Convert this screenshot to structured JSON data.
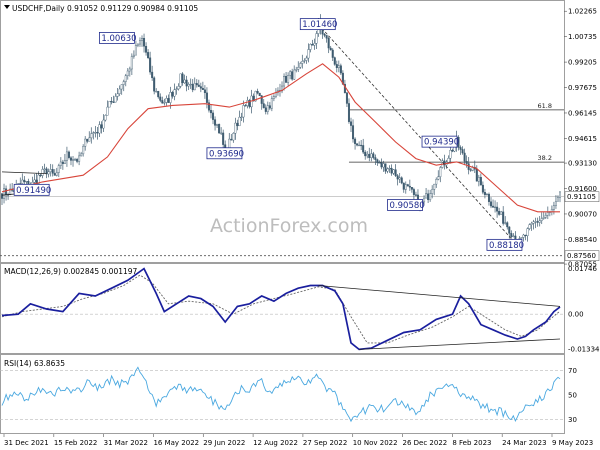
{
  "chart_data": [
    {
      "type": "candlestick",
      "header": "USDCHF,Daily  0.91052 0.91129 0.90984 0.91105",
      "header_arrow": "triangle-down-icon",
      "watermark": "ActionForex.com",
      "ylim": [
        0.873,
        1.0258
      ],
      "y_ticks": [
        "1.02265",
        "1.00735",
        "0.99205",
        "0.97675",
        "0.96145",
        "0.94615",
        "0.93130",
        "0.91600",
        "0.90070",
        "0.88540",
        "0.87055"
      ],
      "current_price": "0.91105",
      "marked_price": "0.87560",
      "fib_levels": [
        {
          "label": "61.8",
          "value": 0.9633
        },
        {
          "label": "38.2",
          "value": 0.9319
        }
      ],
      "price_boxes": [
        "1.00630",
        "1.01460",
        "0.93690",
        "0.94390",
        "0.90580",
        "0.88180",
        "0.91490"
      ],
      "price_path": [
        [
          0,
          0.913
        ],
        [
          6,
          0.915
        ],
        [
          10,
          0.92
        ],
        [
          14,
          0.917
        ],
        [
          18,
          0.923
        ],
        [
          22,
          0.927
        ],
        [
          26,
          0.923
        ],
        [
          32,
          0.936
        ],
        [
          38,
          0.933
        ],
        [
          42,
          0.947
        ],
        [
          48,
          0.952
        ],
        [
          52,
          0.964
        ],
        [
          56,
          0.972
        ],
        [
          62,
          0.986
        ],
        [
          66,
          1.0
        ],
        [
          69,
          1.0063
        ],
        [
          72,
          0.992
        ],
        [
          75,
          0.976
        ],
        [
          80,
          0.966
        ],
        [
          84,
          0.974
        ],
        [
          88,
          0.982
        ],
        [
          92,
          0.979
        ],
        [
          96,
          0.976
        ],
        [
          100,
          0.972
        ],
        [
          104,
          0.96
        ],
        [
          108,
          0.948
        ],
        [
          110,
          0.9369
        ],
        [
          114,
          0.95
        ],
        [
          118,
          0.962
        ],
        [
          122,
          0.968
        ],
        [
          126,
          0.973
        ],
        [
          130,
          0.964
        ],
        [
          134,
          0.97
        ],
        [
          138,
          0.98
        ],
        [
          142,
          0.984
        ],
        [
          146,
          0.986
        ],
        [
          150,
          0.996
        ],
        [
          154,
          1.005
        ],
        [
          156,
          1.0146
        ],
        [
          160,
          1.005
        ],
        [
          162,
          0.998
        ],
        [
          166,
          0.987
        ],
        [
          168,
          0.978
        ],
        [
          171,
          0.958
        ],
        [
          174,
          0.943
        ],
        [
          178,
          0.938
        ],
        [
          182,
          0.936
        ],
        [
          186,
          0.93
        ],
        [
          190,
          0.929
        ],
        [
          194,
          0.925
        ],
        [
          198,
          0.918
        ],
        [
          202,
          0.913
        ],
        [
          206,
          0.9058
        ],
        [
          210,
          0.912
        ],
        [
          214,
          0.924
        ],
        [
          218,
          0.932
        ],
        [
          222,
          0.94
        ],
        [
          224,
          0.9439
        ],
        [
          228,
          0.933
        ],
        [
          232,
          0.927
        ],
        [
          236,
          0.918
        ],
        [
          240,
          0.91
        ],
        [
          244,
          0.902
        ],
        [
          248,
          0.896
        ],
        [
          252,
          0.888
        ],
        [
          254,
          0.8818
        ],
        [
          258,
          0.888
        ],
        [
          262,
          0.895
        ],
        [
          266,
          0.898
        ],
        [
          270,
          0.901
        ],
        [
          273,
          0.906
        ],
        [
          275,
          0.911
        ]
      ],
      "ma_path": [
        [
          0,
          0.914
        ],
        [
          20,
          0.92
        ],
        [
          40,
          0.924
        ],
        [
          52,
          0.935
        ],
        [
          62,
          0.952
        ],
        [
          72,
          0.964
        ],
        [
          84,
          0.966
        ],
        [
          100,
          0.967
        ],
        [
          112,
          0.965
        ],
        [
          124,
          0.969
        ],
        [
          138,
          0.975
        ],
        [
          150,
          0.985
        ],
        [
          158,
          0.991
        ],
        [
          166,
          0.983
        ],
        [
          174,
          0.968
        ],
        [
          184,
          0.956
        ],
        [
          194,
          0.944
        ],
        [
          204,
          0.934
        ],
        [
          214,
          0.93
        ],
        [
          224,
          0.932
        ],
        [
          234,
          0.928
        ],
        [
          244,
          0.917
        ],
        [
          254,
          0.906
        ],
        [
          264,
          0.902
        ],
        [
          275,
          0.902
        ]
      ],
      "trendline_dashed": [
        [
          156,
          1.0146
        ],
        [
          254,
          0.8818
        ]
      ],
      "triangle_left": [
        [
          0,
          0.926
        ],
        [
          22,
          0.925
        ],
        [
          0,
          0.912
        ],
        [
          22,
          0.9145
        ]
      ]
    },
    {
      "type": "line",
      "header": "MACD(12,26,9) 0.002845 0.001197",
      "ylim": [
        -0.0145,
        0.0185
      ],
      "y_ticks": [
        "0.01746",
        "0.00",
        "-0.01334"
      ],
      "macd_path": [
        [
          0,
          -0.0005
        ],
        [
          8,
          0.0
        ],
        [
          14,
          0.004
        ],
        [
          22,
          0.002
        ],
        [
          30,
          0.001
        ],
        [
          38,
          0.008
        ],
        [
          46,
          0.007
        ],
        [
          54,
          0.01
        ],
        [
          62,
          0.013
        ],
        [
          70,
          0.0175
        ],
        [
          76,
          0.008
        ],
        [
          80,
          0.001
        ],
        [
          86,
          0.004
        ],
        [
          92,
          0.007
        ],
        [
          98,
          0.006
        ],
        [
          104,
          0.003
        ],
        [
          110,
          -0.003
        ],
        [
          116,
          0.003
        ],
        [
          122,
          0.004
        ],
        [
          128,
          0.007
        ],
        [
          134,
          0.005
        ],
        [
          140,
          0.008
        ],
        [
          146,
          0.01
        ],
        [
          152,
          0.011
        ],
        [
          158,
          0.011
        ],
        [
          164,
          0.009
        ],
        [
          168,
          0.004
        ],
        [
          172,
          -0.011
        ],
        [
          176,
          -0.0135
        ],
        [
          182,
          -0.013
        ],
        [
          190,
          -0.01
        ],
        [
          198,
          -0.007
        ],
        [
          206,
          -0.006
        ],
        [
          214,
          -0.002
        ],
        [
          222,
          0.0
        ],
        [
          226,
          0.007
        ],
        [
          230,
          0.004
        ],
        [
          236,
          -0.004
        ],
        [
          242,
          -0.006
        ],
        [
          248,
          -0.008
        ],
        [
          254,
          -0.0095
        ],
        [
          258,
          -0.0085
        ],
        [
          262,
          -0.006
        ],
        [
          268,
          -0.003
        ],
        [
          272,
          0.001
        ],
        [
          275,
          0.0028
        ]
      ],
      "signal_path": [
        [
          0,
          -0.001
        ],
        [
          10,
          0.001
        ],
        [
          20,
          0.002
        ],
        [
          30,
          0.003
        ],
        [
          40,
          0.006
        ],
        [
          50,
          0.008
        ],
        [
          60,
          0.011
        ],
        [
          68,
          0.015
        ],
        [
          74,
          0.012
        ],
        [
          82,
          0.004
        ],
        [
          92,
          0.005
        ],
        [
          104,
          0.004
        ],
        [
          114,
          0.0
        ],
        [
          124,
          0.004
        ],
        [
          134,
          0.006
        ],
        [
          144,
          0.008
        ],
        [
          156,
          0.0105
        ],
        [
          164,
          0.0095
        ],
        [
          172,
          -0.001
        ],
        [
          180,
          -0.011
        ],
        [
          190,
          -0.011
        ],
        [
          200,
          -0.008
        ],
        [
          212,
          -0.005
        ],
        [
          222,
          -0.001
        ],
        [
          230,
          0.003
        ],
        [
          238,
          -0.001
        ],
        [
          248,
          -0.006
        ],
        [
          256,
          -0.0085
        ],
        [
          264,
          -0.006
        ],
        [
          270,
          -0.002
        ],
        [
          275,
          0.0012
        ]
      ],
      "trendlines": [
        [
          [
            156,
            0.011
          ],
          [
            275,
            0.003
          ]
        ],
        [
          [
            176,
            -0.0135
          ],
          [
            275,
            -0.0095
          ]
        ]
      ]
    },
    {
      "type": "line",
      "header": "RSI(14) 63.8635",
      "ylim": [
        20,
        80
      ],
      "y_ticks": [
        "70",
        "50",
        "30"
      ],
      "rsi_path": [
        [
          0,
          45
        ],
        [
          6,
          52
        ],
        [
          12,
          47
        ],
        [
          18,
          55
        ],
        [
          24,
          50
        ],
        [
          30,
          57
        ],
        [
          36,
          51
        ],
        [
          42,
          60
        ],
        [
          48,
          55
        ],
        [
          54,
          63
        ],
        [
          60,
          58
        ],
        [
          64,
          66
        ],
        [
          68,
          70
        ],
        [
          72,
          57
        ],
        [
          76,
          44
        ],
        [
          80,
          50
        ],
        [
          86,
          56
        ],
        [
          92,
          54
        ],
        [
          98,
          52
        ],
        [
          104,
          45
        ],
        [
          110,
          38
        ],
        [
          114,
          48
        ],
        [
          118,
          57
        ],
        [
          122,
          55
        ],
        [
          128,
          60
        ],
        [
          132,
          50
        ],
        [
          136,
          56
        ],
        [
          140,
          60
        ],
        [
          146,
          64
        ],
        [
          150,
          60
        ],
        [
          156,
          66
        ],
        [
          160,
          55
        ],
        [
          164,
          50
        ],
        [
          168,
          40
        ],
        [
          172,
          32
        ],
        [
          176,
          36
        ],
        [
          182,
          40
        ],
        [
          188,
          38
        ],
        [
          194,
          44
        ],
        [
          200,
          41
        ],
        [
          206,
          35
        ],
        [
          210,
          48
        ],
        [
          216,
          56
        ],
        [
          222,
          60
        ],
        [
          226,
          52
        ],
        [
          232,
          46
        ],
        [
          238,
          40
        ],
        [
          244,
          37
        ],
        [
          250,
          34
        ],
        [
          254,
          32
        ],
        [
          258,
          40
        ],
        [
          264,
          46
        ],
        [
          270,
          54
        ],
        [
          275,
          64
        ]
      ]
    }
  ],
  "x_ticks": [
    "31 Dec 2021",
    "15 Feb 2022",
    "31 Mar 2022",
    "16 May 2022",
    "29 Jun 2022",
    "12 Aug 2022",
    "27 Sep 2022",
    "10 Nov 2022",
    "26 Dec 2022",
    "8 Feb 2023",
    "24 Mar 2023",
    "9 May 2023"
  ],
  "colors": {
    "candle": "#3d5a6e",
    "ma": "#d8453a",
    "macd": "#1a1f9e",
    "signal": "#666666",
    "rsi": "#4aa8e0",
    "box_text": "#1f2a8c",
    "grid": "#d9d9d9"
  }
}
